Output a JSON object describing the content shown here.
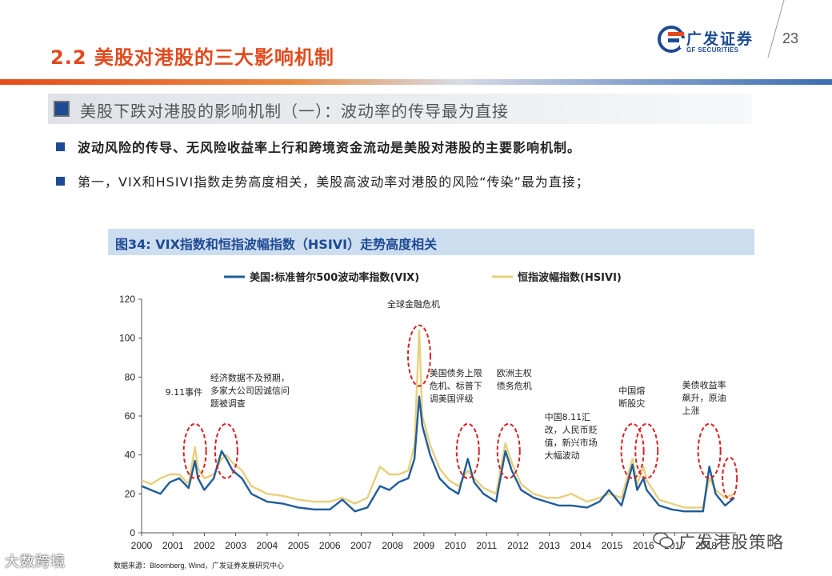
{
  "header": {
    "title": "2.2 美股对港股的三大影响机制",
    "logo_cn": "广发证券",
    "logo_en": "GF SECURITIES",
    "page_number": "23"
  },
  "section": {
    "heading": "美股下跌对港股的影响机制（一）：波动率的传导最为直接"
  },
  "bullets": [
    "波动风险的传导、无风险收益率上行和跨境资金流动是美股对港股的主要影响机制。",
    "第一，VIX和HSIVI指数走势高度相关，美股高波动率对港股的风险“传染”最为直接；"
  ],
  "figure": {
    "title": "图34:  VIX指数和恒指波幅指数（HSIVI）走势高度相关",
    "source": "数据来源：Bloomberg, Wind，广发证券发展研究中心"
  },
  "watermarks": {
    "left": "大数跨境",
    "right": "广发港股策略"
  },
  "colors": {
    "accent": "#e24a1d",
    "brand": "#1d4a93",
    "vix": "#1f5c99",
    "hsivi": "#e8cf7c",
    "annotation": "#d62020"
  },
  "chart_data": {
    "type": "line",
    "x_ticks": [
      "2000",
      "2001",
      "2002",
      "2003",
      "2004",
      "2005",
      "2006",
      "2007",
      "2008",
      "2009",
      "2010",
      "2011",
      "2012",
      "2013",
      "2014",
      "2015",
      "2016",
      "2017",
      "2018"
    ],
    "ylim": [
      0,
      120
    ],
    "y_ticks": [
      0,
      20,
      40,
      60,
      80,
      100,
      120
    ],
    "legend_position": "top-center",
    "series": [
      {
        "name": "美国:标准普尔500波动率指数(VIX)",
        "x": [
          2000.0,
          2000.3,
          2000.6,
          2000.9,
          2001.2,
          2001.5,
          2001.7,
          2001.8,
          2002.0,
          2002.3,
          2002.55,
          2002.7,
          2002.9,
          2003.2,
          2003.5,
          2004.0,
          2004.5,
          2005.0,
          2005.5,
          2006.0,
          2006.4,
          2006.8,
          2007.2,
          2007.6,
          2007.9,
          2008.2,
          2008.5,
          2008.7,
          2008.85,
          2008.95,
          2009.2,
          2009.5,
          2009.8,
          2010.1,
          2010.4,
          2010.6,
          2010.9,
          2011.3,
          2011.6,
          2011.8,
          2012.1,
          2012.5,
          2012.9,
          2013.3,
          2013.7,
          2014.2,
          2014.6,
          2014.9,
          2015.3,
          2015.65,
          2015.8,
          2016.0,
          2016.1,
          2016.5,
          2016.9,
          2017.3,
          2017.9,
          2018.1,
          2018.3,
          2018.6,
          2018.9
        ],
        "values": [
          24,
          22,
          20,
          26,
          28,
          23,
          37,
          28,
          22,
          28,
          42,
          38,
          32,
          28,
          20,
          16,
          15,
          13,
          12,
          12,
          17,
          11,
          13,
          24,
          22,
          26,
          28,
          38,
          70,
          55,
          40,
          28,
          23,
          20,
          38,
          26,
          20,
          16,
          42,
          32,
          22,
          18,
          16,
          14,
          14,
          13,
          16,
          22,
          14,
          35,
          22,
          28,
          22,
          14,
          12,
          11,
          11,
          34,
          20,
          14,
          18
        ]
      },
      {
        "name": "恒指波幅指数(HSIVI)",
        "x": [
          2000.0,
          2000.3,
          2000.6,
          2000.9,
          2001.2,
          2001.5,
          2001.7,
          2001.8,
          2002.0,
          2002.3,
          2002.55,
          2002.7,
          2002.9,
          2003.2,
          2003.5,
          2004.0,
          2004.5,
          2005.0,
          2005.5,
          2006.0,
          2006.4,
          2006.8,
          2007.2,
          2007.6,
          2007.9,
          2008.2,
          2008.5,
          2008.7,
          2008.85,
          2008.95,
          2009.2,
          2009.5,
          2009.8,
          2010.1,
          2010.4,
          2010.6,
          2010.9,
          2011.3,
          2011.6,
          2011.8,
          2012.1,
          2012.5,
          2012.9,
          2013.3,
          2013.7,
          2014.2,
          2014.6,
          2014.9,
          2015.3,
          2015.65,
          2015.8,
          2016.0,
          2016.1,
          2016.5,
          2016.9,
          2017.3,
          2017.9,
          2018.1,
          2018.3,
          2018.6,
          2018.9
        ],
        "values": [
          27,
          25,
          28,
          30,
          30,
          25,
          44,
          33,
          28,
          30,
          38,
          40,
          36,
          32,
          24,
          20,
          19,
          17,
          16,
          16,
          18,
          15,
          18,
          34,
          30,
          30,
          32,
          45,
          104,
          60,
          45,
          33,
          27,
          24,
          32,
          28,
          23,
          20,
          46,
          36,
          25,
          20,
          18,
          18,
          20,
          16,
          18,
          20,
          18,
          38,
          25,
          34,
          27,
          17,
          15,
          13,
          13,
          28,
          22,
          18,
          20
        ]
      }
    ],
    "annotations": [
      {
        "text": "9.11事件",
        "x": 2001.7
      },
      {
        "text": "经济数据不及预期，多家大公司因诚信问题被调查",
        "x": 2002.7
      },
      {
        "text": "全球金融危机",
        "x": 2008.85
      },
      {
        "text": "美国债务上限危机、标普下调美国评级",
        "x": 2010.4
      },
      {
        "text": "欧洲主权债务危机",
        "x": 2011.7
      },
      {
        "text": "中国8.11汇改，人民币贬值，新兴市场大幅波动",
        "x": 2015.65
      },
      {
        "text": "中国熔断股灾",
        "x": 2016.1
      },
      {
        "text": "美债收益率飙升，原油上涨",
        "x": 2018.1
      }
    ]
  }
}
